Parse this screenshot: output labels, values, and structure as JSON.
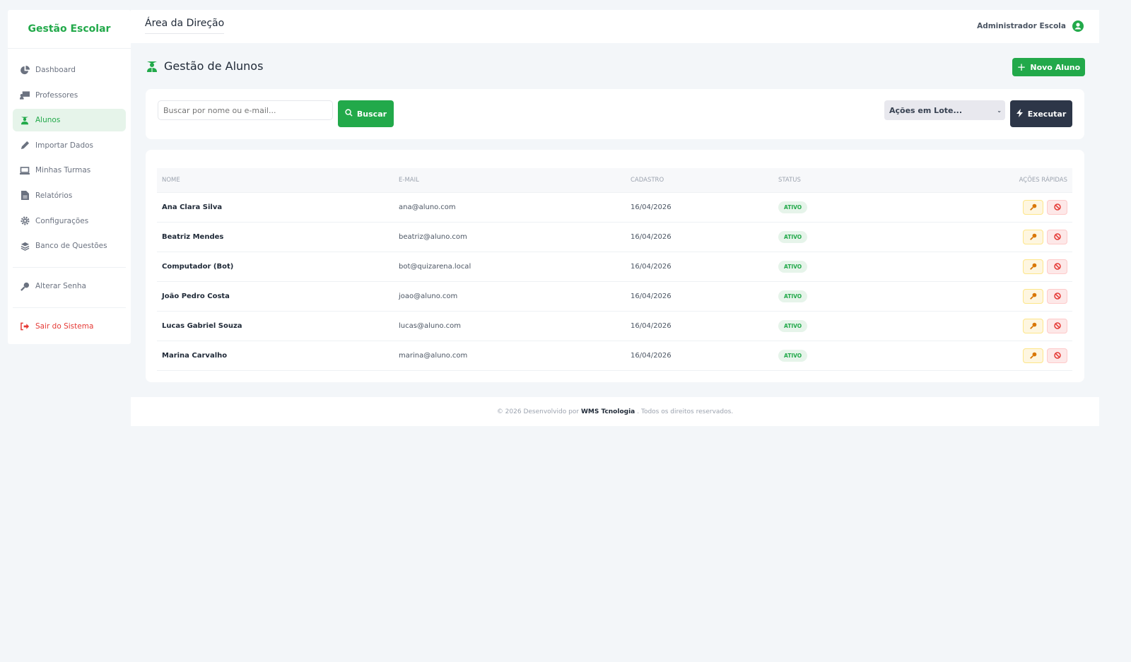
{
  "brand": "Gestão Escolar",
  "sidebar": {
    "items": [
      {
        "label": "Dashboard",
        "icon": "chart-pie-icon"
      },
      {
        "label": "Professores",
        "icon": "chalkboard-teacher-icon"
      },
      {
        "label": "Alunos",
        "icon": "user-graduate-icon",
        "active": true
      },
      {
        "label": "Importar Dados",
        "icon": "pen-icon"
      },
      {
        "label": "Minhas Turmas",
        "icon": "laptop-icon"
      },
      {
        "label": "Relatórios",
        "icon": "file-icon"
      },
      {
        "label": "Configurações",
        "icon": "gear-icon"
      },
      {
        "label": "Banco de Questões",
        "icon": "layers-icon"
      }
    ],
    "change_password": "Alterar Senha",
    "logout": "Sair do Sistema"
  },
  "header": {
    "title": "Área da Direção",
    "user": "Administrador Escola"
  },
  "page": {
    "title": "Gestão de Alunos",
    "new_button": "Novo Aluno"
  },
  "search": {
    "placeholder": "Buscar por nome ou e-mail...",
    "button": "Buscar",
    "bulk_select": "Ações em Lote...",
    "execute": "Executar"
  },
  "table": {
    "headers": [
      "NOME",
      "E-MAIL",
      "CADASTRO",
      "STATUS",
      "AÇÕES RÁPIDAS"
    ],
    "rows": [
      {
        "name": "Ana Clara Silva",
        "email": "ana@aluno.com",
        "date": "16/04/2026",
        "status": "ATIVO"
      },
      {
        "name": "Beatriz Mendes",
        "email": "beatriz@aluno.com",
        "date": "16/04/2026",
        "status": "ATIVO"
      },
      {
        "name": "Computador (Bot)",
        "email": "bot@quizarena.local",
        "date": "16/04/2026",
        "status": "ATIVO"
      },
      {
        "name": "João Pedro Costa",
        "email": "joao@aluno.com",
        "date": "16/04/2026",
        "status": "ATIVO"
      },
      {
        "name": "Lucas Gabriel Souza",
        "email": "lucas@aluno.com",
        "date": "16/04/2026",
        "status": "ATIVO"
      },
      {
        "name": "Marina Carvalho",
        "email": "marina@aluno.com",
        "date": "16/04/2026",
        "status": "ATIVO"
      }
    ]
  },
  "footer": {
    "prefix": "© 2026 Desenvolvido por",
    "company": "WMS Tcnologia",
    "suffix": ". Todos os direitos reservados."
  },
  "colors": {
    "accent": "#22a94a",
    "dark": "#2d3648",
    "danger": "#e53935",
    "warning": "#d97706"
  }
}
